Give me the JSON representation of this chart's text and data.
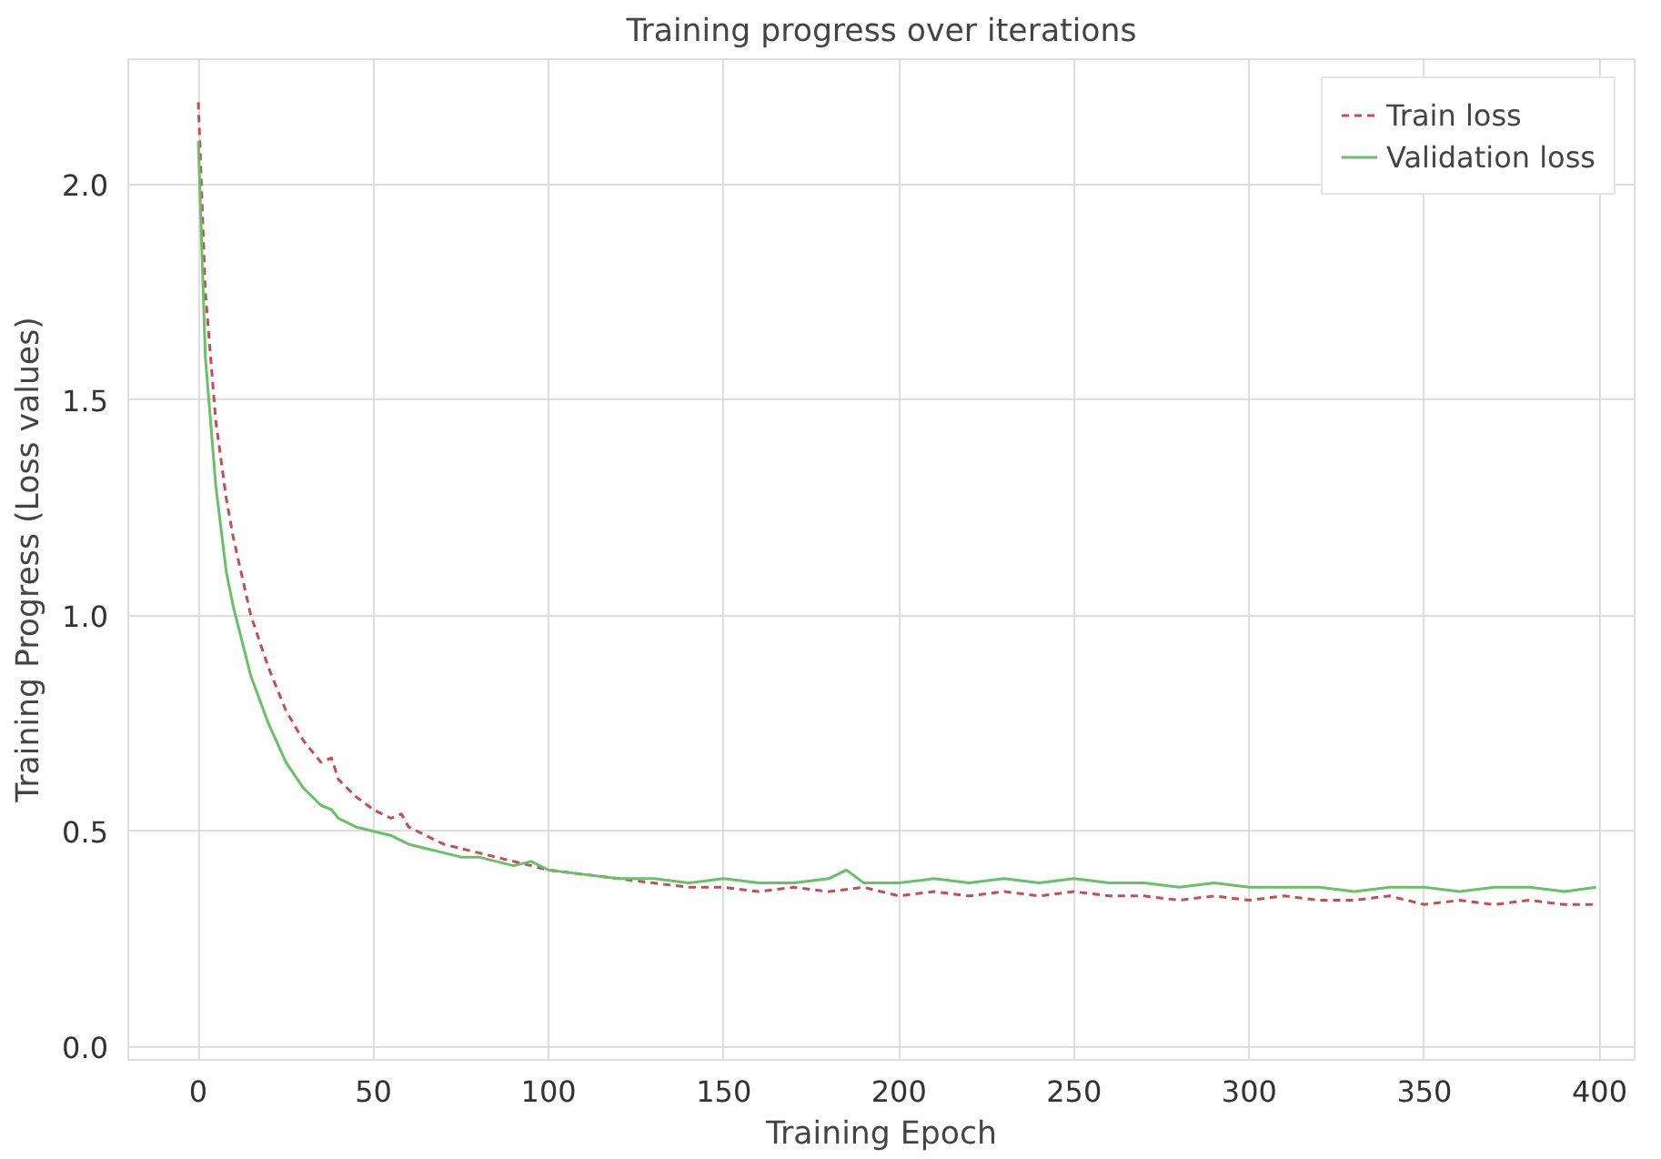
{
  "chart_data": {
    "type": "line",
    "title": "Training progress over iterations",
    "xlabel": "Training Epoch",
    "ylabel": "Training Progress (Loss values)",
    "xlim": [
      -20,
      410
    ],
    "ylim": [
      -0.03,
      2.29
    ],
    "xticks": [
      0,
      50,
      100,
      150,
      200,
      250,
      300,
      350,
      400
    ],
    "yticks": [
      {
        "value": 0,
        "label": "0.0"
      },
      {
        "value": 0.5,
        "label": "0.5"
      },
      {
        "value": 1,
        "label": "1.0"
      },
      {
        "value": 1.5,
        "label": "1.5"
      },
      {
        "value": 2,
        "label": "2.0"
      }
    ],
    "grid": true,
    "legend": "top right",
    "series": [
      {
        "name": "Train loss",
        "color": "#c44e52",
        "line_style": "dashed",
        "x": [
          0,
          2,
          5,
          8,
          10,
          15,
          20,
          25,
          30,
          35,
          38,
          40,
          45,
          50,
          55,
          58,
          60,
          65,
          70,
          75,
          80,
          85,
          90,
          95,
          100,
          110,
          120,
          130,
          140,
          150,
          160,
          170,
          180,
          190,
          200,
          210,
          220,
          230,
          240,
          250,
          260,
          270,
          280,
          290,
          300,
          310,
          320,
          330,
          340,
          350,
          360,
          370,
          380,
          390,
          399
        ],
        "values": [
          2.19,
          1.75,
          1.45,
          1.27,
          1.18,
          1.0,
          0.88,
          0.78,
          0.71,
          0.66,
          0.67,
          0.62,
          0.58,
          0.55,
          0.53,
          0.54,
          0.51,
          0.49,
          0.47,
          0.46,
          0.45,
          0.44,
          0.43,
          0.42,
          0.41,
          0.4,
          0.39,
          0.38,
          0.37,
          0.37,
          0.36,
          0.37,
          0.36,
          0.37,
          0.35,
          0.36,
          0.35,
          0.36,
          0.35,
          0.36,
          0.35,
          0.35,
          0.34,
          0.35,
          0.34,
          0.35,
          0.34,
          0.34,
          0.35,
          0.33,
          0.34,
          0.33,
          0.34,
          0.33,
          0.33
        ]
      },
      {
        "name": "Validation loss",
        "color": "#6abf69",
        "line_style": "solid",
        "x": [
          0,
          2,
          5,
          8,
          10,
          15,
          20,
          25,
          30,
          35,
          38,
          40,
          45,
          50,
          55,
          60,
          65,
          70,
          75,
          80,
          85,
          90,
          95,
          100,
          110,
          120,
          130,
          140,
          150,
          160,
          170,
          180,
          185,
          190,
          200,
          210,
          220,
          230,
          240,
          250,
          260,
          270,
          280,
          290,
          300,
          310,
          320,
          330,
          340,
          350,
          360,
          370,
          380,
          390,
          399
        ],
        "values": [
          2.1,
          1.6,
          1.3,
          1.1,
          1.02,
          0.86,
          0.75,
          0.66,
          0.6,
          0.56,
          0.55,
          0.53,
          0.51,
          0.5,
          0.49,
          0.47,
          0.46,
          0.45,
          0.44,
          0.44,
          0.43,
          0.42,
          0.43,
          0.41,
          0.4,
          0.39,
          0.39,
          0.38,
          0.39,
          0.38,
          0.38,
          0.39,
          0.41,
          0.38,
          0.38,
          0.39,
          0.38,
          0.39,
          0.38,
          0.39,
          0.38,
          0.38,
          0.37,
          0.38,
          0.37,
          0.37,
          0.37,
          0.36,
          0.37,
          0.37,
          0.36,
          0.37,
          0.37,
          0.36,
          0.37
        ]
      }
    ]
  }
}
